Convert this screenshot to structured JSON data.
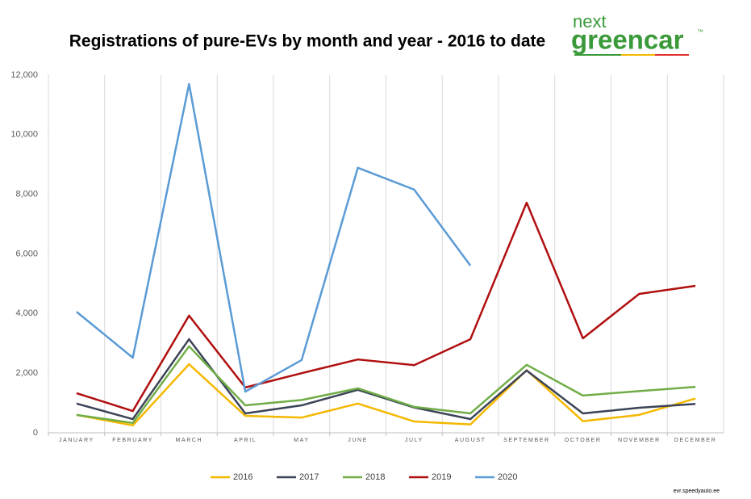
{
  "chart_data": {
    "type": "line",
    "title": "Registrations of pure-EVs by month and year - 2016 to date",
    "categories": [
      "JANUARY",
      "FEBRUARY",
      "MARCH",
      "APRIL",
      "MAY",
      "JUNE",
      "JULY",
      "AUGUST",
      "SEPTEMBER",
      "OCTOBER",
      "NOVEMBER",
      "DECEMBER"
    ],
    "series": [
      {
        "name": "2016",
        "color": "#f5b800",
        "values": [
          600,
          250,
          2300,
          570,
          510,
          980,
          380,
          280,
          2100,
          390,
          600,
          1150
        ]
      },
      {
        "name": "2017",
        "color": "#3b4457",
        "values": [
          980,
          460,
          3140,
          650,
          920,
          1440,
          850,
          460,
          2090,
          650,
          840,
          970
        ]
      },
      {
        "name": "2018",
        "color": "#70ad47",
        "values": [
          600,
          330,
          2900,
          920,
          1100,
          1490,
          870,
          650,
          2280,
          1250,
          1400,
          1540
        ]
      },
      {
        "name": "2019",
        "color": "#b00f0f",
        "values": [
          1330,
          730,
          3930,
          1520,
          2000,
          2460,
          2270,
          3140,
          7720,
          3170,
          4660,
          4930
        ]
      },
      {
        "name": "2020",
        "color": "#5a9bd5",
        "values": [
          4060,
          2520,
          11700,
          1380,
          2440,
          8890,
          8160,
          5610,
          null,
          null,
          null,
          null
        ]
      }
    ],
    "ylim": [
      0,
      12000
    ],
    "yticks": [
      0,
      {
        "value": 2000,
        "label": "2,000"
      },
      {
        "value": 4000,
        "label": "4,000"
      },
      {
        "value": 6000,
        "label": "6,000"
      },
      {
        "value": 8000,
        "label": "8,000"
      },
      {
        "value": 10000,
        "label": "10,000"
      },
      {
        "value": 12000,
        "label": "12,000"
      }
    ],
    "grid": true,
    "legend": "bottom"
  },
  "logo": {
    "top": "next",
    "bottom": "greencar",
    "mark": "™"
  },
  "watermark": "evr.speedyauto.ee"
}
